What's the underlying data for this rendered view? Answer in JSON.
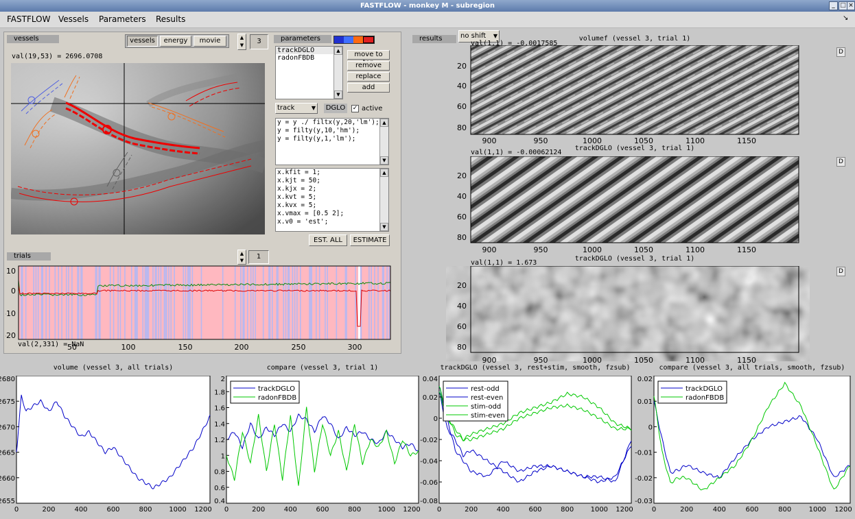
{
  "window": {
    "title": "FASTFLOW - monkey M - subregion"
  },
  "menu": [
    "FASTFLOW",
    "Vessels",
    "Parameters",
    "Results"
  ],
  "vessels_panel": {
    "label": "vessels",
    "mode_buttons": [
      "vessels",
      "energy",
      "movie"
    ],
    "spinner_value": "3",
    "value_readout": "val(19,53) = 2696.0708"
  },
  "parameters_panel": {
    "label": "parameters",
    "colors": [
      "#2030d0",
      "#4070ff",
      "#ff6a10",
      "#e02020"
    ],
    "list": [
      "trackDGLO",
      "radonFBDB"
    ],
    "buttons": [
      "move to top",
      "remove",
      "replace",
      "add"
    ],
    "method_select": "track",
    "method_name": "DGLO",
    "active_label": "active",
    "filter_code": [
      "y = y ./ filtx(y,20,'lm');",
      "y = filty(y,10,'hm');",
      "y = filty(y,1,'lm');"
    ],
    "fit_code": [
      "x.kfit = 1;",
      "x.kjt = 50;",
      "x.kjx = 2;",
      "x.kvt = 5;",
      "x.kvx = 5;",
      "x.vmax = [0.5 2];",
      "x.v0 = 'est';"
    ],
    "est_all": "EST. ALL",
    "estimate": "ESTIMATE"
  },
  "trials_panel": {
    "label": "trials",
    "spinner_value": "1",
    "readout": "val(2,331) = NaN",
    "yticks": [
      "10",
      "0",
      "-10",
      "-20"
    ],
    "xticks": [
      "50",
      "100",
      "150",
      "200",
      "250",
      "300"
    ]
  },
  "results_panel": {
    "label": "results",
    "shift_select": "no shift",
    "images": [
      {
        "title": "volumef (vessel 3, trial 1)",
        "readout": "val(1,1) = -0.0017585"
      },
      {
        "title": "trackDGLO (vessel 3, trial 1)",
        "readout": "val(1,1) = -0.00062124"
      },
      {
        "title": "trackDGLO (vessel 3, trial 1)",
        "readout": "val(1,1) = 1.673"
      }
    ],
    "image_yticks": [
      "20",
      "40",
      "60",
      "80"
    ],
    "image_xticks": [
      "900",
      "950",
      "1000",
      "1050",
      "1100",
      "1150"
    ]
  },
  "d_button": "D",
  "chart_data": [
    {
      "type": "line",
      "title": "volume (vessel 3, all trials)",
      "ylim": [
        2655,
        2680
      ],
      "yticks": [
        "2680",
        "2675",
        "2670",
        "2665",
        "2660",
        "2655"
      ],
      "xticks": [
        "0",
        "200",
        "400",
        "600",
        "800",
        "1000",
        "1200"
      ],
      "series": [
        {
          "color": "#0000c8",
          "x": [
            0,
            30,
            60,
            100,
            150,
            200,
            250,
            300,
            350,
            400,
            450,
            500,
            550,
            600,
            650,
            700,
            750,
            800,
            850,
            900,
            950,
            1000,
            1050,
            1100,
            1150,
            1200
          ],
          "y": [
            2665,
            2676,
            2673,
            2674,
            2675,
            2673,
            2675,
            2672,
            2670,
            2668,
            2669,
            2667,
            2665,
            2666,
            2664,
            2662,
            2660,
            2659,
            2658,
            2659,
            2660,
            2662,
            2664,
            2666,
            2669,
            2672
          ]
        }
      ]
    },
    {
      "type": "line",
      "title": "compare (vessel 3, trial 1)",
      "ylim": [
        0.4,
        2.0
      ],
      "yticks": [
        "2",
        "1.8",
        "1.6",
        "1.4",
        "1.2",
        "1",
        "0.8",
        "0.6",
        "0.4"
      ],
      "xticks": [
        "0",
        "200",
        "400",
        "600",
        "800",
        "1000",
        "1200"
      ],
      "legend": [
        "trackDGLO",
        "radonFBDB"
      ],
      "series": [
        {
          "name": "trackDGLO",
          "color": "#0000c8",
          "x": [
            0,
            50,
            100,
            150,
            200,
            250,
            300,
            350,
            400,
            450,
            500,
            550,
            600,
            650,
            700,
            750,
            800,
            850,
            900,
            950,
            1000,
            1050,
            1100,
            1150,
            1200
          ],
          "y": [
            1.2,
            1.3,
            1.1,
            1.4,
            1.2,
            1.35,
            1.25,
            1.4,
            1.3,
            1.5,
            1.45,
            1.3,
            1.5,
            1.4,
            1.2,
            1.35,
            1.25,
            1.3,
            1.2,
            1.15,
            1.3,
            1.2,
            1.1,
            1.15,
            1.05
          ]
        },
        {
          "name": "radonFBDB",
          "color": "#00c800",
          "x": [
            0,
            50,
            100,
            150,
            200,
            250,
            300,
            350,
            400,
            450,
            500,
            550,
            600,
            650,
            700,
            750,
            800,
            850,
            900,
            950,
            1000,
            1050,
            1100,
            1150,
            1200
          ],
          "y": [
            1.0,
            0.7,
            1.3,
            0.9,
            1.5,
            0.8,
            1.4,
            0.7,
            1.5,
            0.6,
            1.6,
            0.8,
            1.4,
            1.0,
            1.3,
            0.8,
            1.4,
            0.9,
            1.2,
            1.1,
            1.3,
            0.9,
            1.2,
            1.0,
            1.05
          ]
        }
      ]
    },
    {
      "type": "line",
      "title": "trackDGLO (vessel 3, rest+stim, smooth, fzsub)",
      "ylim": [
        -0.08,
        0.04
      ],
      "yticks": [
        "0.04",
        "0.02",
        "0",
        "-0.02",
        "-0.04",
        "-0.06",
        "-0.08"
      ],
      "xticks": [
        "0",
        "200",
        "400",
        "600",
        "800",
        "1000",
        "1200"
      ],
      "legend": [
        "rest-odd",
        "rest-even",
        "stim-odd",
        "stim-even"
      ],
      "series": [
        {
          "name": "rest-odd",
          "color": "#0000c8",
          "x": [
            0,
            50,
            100,
            150,
            200,
            300,
            400,
            500,
            600,
            700,
            800,
            900,
            1000,
            1100,
            1200
          ],
          "y": [
            0.03,
            0.0,
            -0.03,
            -0.04,
            -0.05,
            -0.055,
            -0.04,
            -0.05,
            -0.045,
            -0.045,
            -0.05,
            -0.055,
            -0.06,
            -0.055,
            -0.025
          ]
        },
        {
          "name": "rest-even",
          "color": "#0000c8",
          "x": [
            0,
            50,
            100,
            150,
            200,
            300,
            400,
            500,
            600,
            700,
            800,
            900,
            1000,
            1100,
            1200
          ],
          "y": [
            0.025,
            -0.01,
            -0.02,
            -0.035,
            -0.03,
            -0.04,
            -0.05,
            -0.06,
            -0.05,
            -0.045,
            -0.05,
            -0.055,
            -0.055,
            -0.06,
            -0.02
          ]
        },
        {
          "name": "stim-odd",
          "color": "#00c800",
          "x": [
            0,
            50,
            100,
            150,
            200,
            300,
            400,
            500,
            600,
            700,
            800,
            900,
            1000,
            1100,
            1200
          ],
          "y": [
            0.03,
            0.005,
            -0.015,
            -0.02,
            -0.015,
            -0.01,
            -0.005,
            0.005,
            0.01,
            0.015,
            0.023,
            0.02,
            0.01,
            -0.005,
            -0.01
          ]
        },
        {
          "name": "stim-even",
          "color": "#00c800",
          "x": [
            0,
            50,
            100,
            150,
            200,
            300,
            400,
            500,
            600,
            700,
            800,
            900,
            1000,
            1100,
            1200
          ],
          "y": [
            0.025,
            0.0,
            -0.01,
            -0.02,
            -0.02,
            -0.015,
            -0.01,
            0.0,
            0.005,
            0.01,
            0.012,
            0.008,
            0.0,
            -0.01,
            -0.01
          ]
        }
      ]
    },
    {
      "type": "line",
      "title": "compare (vessel 3, all trials, smooth, fzsub)",
      "ylim": [
        -0.03,
        0.02
      ],
      "yticks": [
        "0.02",
        "0.01",
        "0",
        "-0.01",
        "-0.02",
        "-0.03"
      ],
      "xticks": [
        "0",
        "200",
        "400",
        "600",
        "800",
        "1000",
        "1200"
      ],
      "legend": [
        "trackDGLO",
        "radonFBDB"
      ],
      "series": [
        {
          "name": "trackDGLO",
          "color": "#0000c8",
          "x": [
            0,
            50,
            100,
            150,
            200,
            300,
            400,
            500,
            600,
            700,
            800,
            900,
            1000,
            1100,
            1200
          ],
          "y": [
            0.01,
            -0.005,
            -0.018,
            -0.017,
            -0.015,
            -0.018,
            -0.02,
            -0.012,
            -0.005,
            0.0,
            0.002,
            0.004,
            -0.005,
            -0.02,
            -0.015
          ]
        },
        {
          "name": "radonFBDB",
          "color": "#00c800",
          "x": [
            0,
            50,
            100,
            150,
            200,
            300,
            400,
            500,
            600,
            700,
            800,
            900,
            1000,
            1100,
            1200
          ],
          "y": [
            0.012,
            -0.01,
            -0.022,
            -0.02,
            -0.02,
            -0.025,
            -0.02,
            -0.015,
            -0.005,
            0.008,
            0.017,
            0.008,
            -0.008,
            -0.025,
            -0.015
          ]
        }
      ]
    }
  ]
}
